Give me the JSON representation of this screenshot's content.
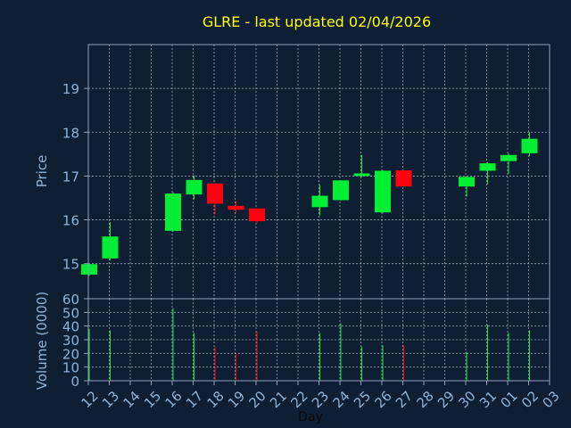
{
  "colors": {
    "background": "#0f1f33",
    "axis_frame": "#8fa3b8",
    "grid": "#c8d4e0",
    "title": "#ffff00",
    "text": "#8fb3d9",
    "up": "#00ee33",
    "down": "#ff0011"
  },
  "chart_data": [
    {
      "type": "candlestick",
      "title": "GLRE - last updated 02/04/2026",
      "ylabel": "Price",
      "ylim": [
        14.2,
        20.0
      ],
      "yticks": [
        15,
        16,
        17,
        18,
        19
      ],
      "grid": true,
      "x_ticks": [
        "12",
        "13",
        "14",
        "15",
        "16",
        "17",
        "18",
        "19",
        "20",
        "21",
        "22",
        "23",
        "24",
        "25",
        "26",
        "27",
        "28",
        "29",
        "30",
        "31",
        "01",
        "02",
        "03"
      ],
      "candles": [
        {
          "day": "12",
          "open": 14.75,
          "high": 14.99,
          "low": 14.72,
          "close": 14.99
        },
        {
          "day": "13",
          "open": 15.12,
          "high": 15.95,
          "low": 15.08,
          "close": 15.62
        },
        {
          "day": "16",
          "open": 15.75,
          "high": 16.63,
          "low": 15.73,
          "close": 16.6
        },
        {
          "day": "17",
          "open": 16.58,
          "high": 17.01,
          "low": 16.47,
          "close": 16.91
        },
        {
          "day": "18",
          "open": 16.83,
          "high": 16.85,
          "low": 16.12,
          "close": 16.37
        },
        {
          "day": "19",
          "open": 16.32,
          "high": 16.43,
          "low": 16.16,
          "close": 16.23
        },
        {
          "day": "20",
          "open": 16.26,
          "high": 16.27,
          "low": 15.93,
          "close": 15.97
        },
        {
          "day": "23",
          "open": 16.29,
          "high": 16.8,
          "low": 16.1,
          "close": 16.55
        },
        {
          "day": "24",
          "open": 16.45,
          "high": 16.9,
          "low": 16.44,
          "close": 16.9
        },
        {
          "day": "25",
          "open": 17.0,
          "high": 17.48,
          "low": 16.98,
          "close": 17.06
        },
        {
          "day": "26",
          "open": 16.17,
          "high": 17.13,
          "low": 16.15,
          "close": 17.12
        },
        {
          "day": "27",
          "open": 17.13,
          "high": 17.14,
          "low": 16.76,
          "close": 16.76
        },
        {
          "day": "30",
          "open": 16.76,
          "high": 17.0,
          "low": 16.53,
          "close": 16.98
        },
        {
          "day": "31",
          "open": 17.12,
          "high": 17.32,
          "low": 16.81,
          "close": 17.29
        },
        {
          "day": "01",
          "open": 17.34,
          "high": 17.52,
          "low": 17.05,
          "close": 17.48
        },
        {
          "day": "02",
          "open": 17.52,
          "high": 18.0,
          "low": 17.45,
          "close": 17.85
        }
      ]
    },
    {
      "type": "bar",
      "xlabel": "Day",
      "ylabel": "Volume (0000)",
      "ylim": [
        0,
        60
      ],
      "yticks": [
        0,
        10,
        20,
        30,
        40,
        50,
        60
      ],
      "grid": true,
      "categories": [
        "12",
        "13",
        "16",
        "17",
        "18",
        "19",
        "20",
        "23",
        "24",
        "25",
        "26",
        "27",
        "30",
        "31",
        "01",
        "02"
      ],
      "values": [
        38,
        37,
        53,
        35,
        25,
        20,
        36,
        35,
        42,
        25,
        26,
        26,
        21,
        41,
        35,
        37
      ],
      "direction": [
        "up",
        "up",
        "up",
        "up",
        "down",
        "down",
        "down",
        "up",
        "up",
        "up",
        "up",
        "down",
        "up",
        "up",
        "up",
        "up"
      ]
    }
  ]
}
